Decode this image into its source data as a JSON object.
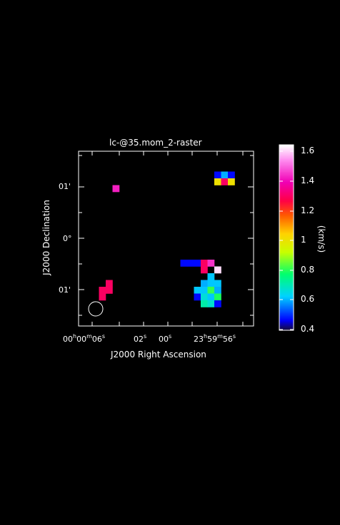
{
  "chart_data": {
    "type": "heatmap",
    "title": "lc-@35.mom_2-raster",
    "xlabel": "J2000 Right Ascension",
    "ylabel": "J2000 Declination",
    "x_ticks": [
      {
        "h": "00",
        "m": "00",
        "s": "06"
      },
      {
        "s": "02"
      },
      {
        "s": "00"
      },
      {
        "h": "23",
        "m": "59",
        "s": "56"
      }
    ],
    "y_ticks": [
      "01'",
      "0°",
      "01'"
    ],
    "colorbar": {
      "label": "(km/s)",
      "ticks": [
        "0.4",
        "0.6",
        "0.8",
        "1",
        "1.2",
        "1.4",
        "1.6"
      ],
      "range": [
        0.38,
        1.65
      ]
    },
    "grid": false,
    "beam": "circle, lower-left",
    "cells": [
      {
        "col": 5,
        "row": 5,
        "value": 1.43
      },
      {
        "col": 20,
        "row": 3,
        "value": 0.45
      },
      {
        "col": 21,
        "row": 3,
        "value": 0.58
      },
      {
        "col": 22,
        "row": 3,
        "value": 0.45
      },
      {
        "col": 20,
        "row": 4,
        "value": 1.0
      },
      {
        "col": 21,
        "row": 4,
        "value": 1.3
      },
      {
        "col": 22,
        "row": 4,
        "value": 1.0
      },
      {
        "col": 15,
        "row": 16,
        "value": 0.45
      },
      {
        "col": 16,
        "row": 16,
        "value": 0.45
      },
      {
        "col": 17,
        "row": 16,
        "value": 0.45
      },
      {
        "col": 18,
        "row": 16,
        "value": 1.3
      },
      {
        "col": 19,
        "row": 16,
        "value": 1.45
      },
      {
        "col": 18,
        "row": 17,
        "value": 1.3
      },
      {
        "col": 20,
        "row": 17,
        "value": 1.62
      },
      {
        "col": 19,
        "row": 18,
        "value": 0.6
      },
      {
        "col": 18,
        "row": 19,
        "value": 0.58
      },
      {
        "col": 19,
        "row": 19,
        "value": 0.6
      },
      {
        "col": 20,
        "row": 19,
        "value": 0.6
      },
      {
        "col": 17,
        "row": 20,
        "value": 0.6
      },
      {
        "col": 18,
        "row": 20,
        "value": 0.6
      },
      {
        "col": 19,
        "row": 20,
        "value": 0.8
      },
      {
        "col": 20,
        "row": 20,
        "value": 0.58
      },
      {
        "col": 17,
        "row": 21,
        "value": 0.45
      },
      {
        "col": 18,
        "row": 21,
        "value": 0.65
      },
      {
        "col": 19,
        "row": 21,
        "value": 0.6
      },
      {
        "col": 20,
        "row": 21,
        "value": 0.78
      },
      {
        "col": 18,
        "row": 22,
        "value": 0.7
      },
      {
        "col": 19,
        "row": 22,
        "value": 0.66
      },
      {
        "col": 20,
        "row": 22,
        "value": 0.45
      },
      {
        "col": 4,
        "row": 19,
        "value": 1.3
      },
      {
        "col": 3,
        "row": 20,
        "value": 1.3
      },
      {
        "col": 4,
        "row": 20,
        "value": 1.3
      },
      {
        "col": 3,
        "row": 21,
        "value": 1.3
      }
    ]
  }
}
